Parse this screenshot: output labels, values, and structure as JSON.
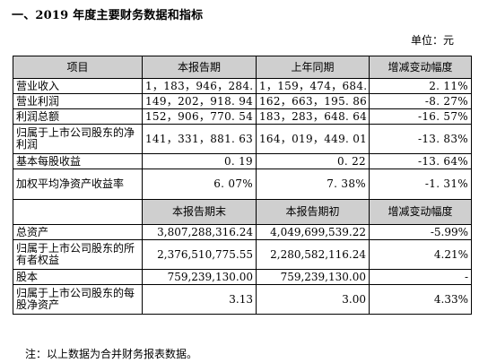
{
  "heading": "一、2019 年度主要财务数据和指标",
  "unit": "单位：元",
  "table1": {
    "headers": [
      "项目",
      "本报告期",
      "上年同期",
      "增减变动幅度"
    ],
    "rows": [
      {
        "label": "营业收入",
        "current": "1，183，946，284. 56",
        "prior": "1，159，474，684. 94",
        "change": "2. 11%"
      },
      {
        "label": "营业利润",
        "current": "149，202，918. 94",
        "prior": "162，663，195. 86",
        "change": "-8. 27%"
      },
      {
        "label": "利润总额",
        "current": "152，906，770. 54",
        "prior": "183，283，648. 64",
        "change": "-16. 57%"
      },
      {
        "label": "归属于上市公司股东的净利润",
        "current": "141，331，881. 63",
        "prior": "164，019，449. 01",
        "change": "-13. 83%"
      },
      {
        "label": "基本每股收益",
        "current": "0. 19",
        "prior": "0. 22",
        "change": "-13. 64%"
      },
      {
        "label": "加权平均净资产收益率",
        "current": "6. 07%",
        "prior": "7. 38%",
        "change": "-1. 31%"
      }
    ]
  },
  "table2": {
    "headers": [
      "",
      "本报告期末",
      "本报告期初",
      "增减变动幅度"
    ],
    "rows": [
      {
        "label": "总资产",
        "current": "3,807,288,316.24",
        "prior": "4,049,699,539.22",
        "change": "-5.99%"
      },
      {
        "label": "归属于上市公司股东的所有者权益",
        "current": "2,376,510,775.55",
        "prior": "2,280,582,116.24",
        "change": "4.21%"
      },
      {
        "label": "股本",
        "current": "759,239,130.00",
        "prior": "759,239,130.00",
        "change": "-"
      },
      {
        "label": "归属于上市公司股东的每股净资产",
        "current": "3.13",
        "prior": "3.00",
        "change": "4.33%"
      }
    ]
  },
  "note": "注：以上数据为合并财务报表数据。"
}
